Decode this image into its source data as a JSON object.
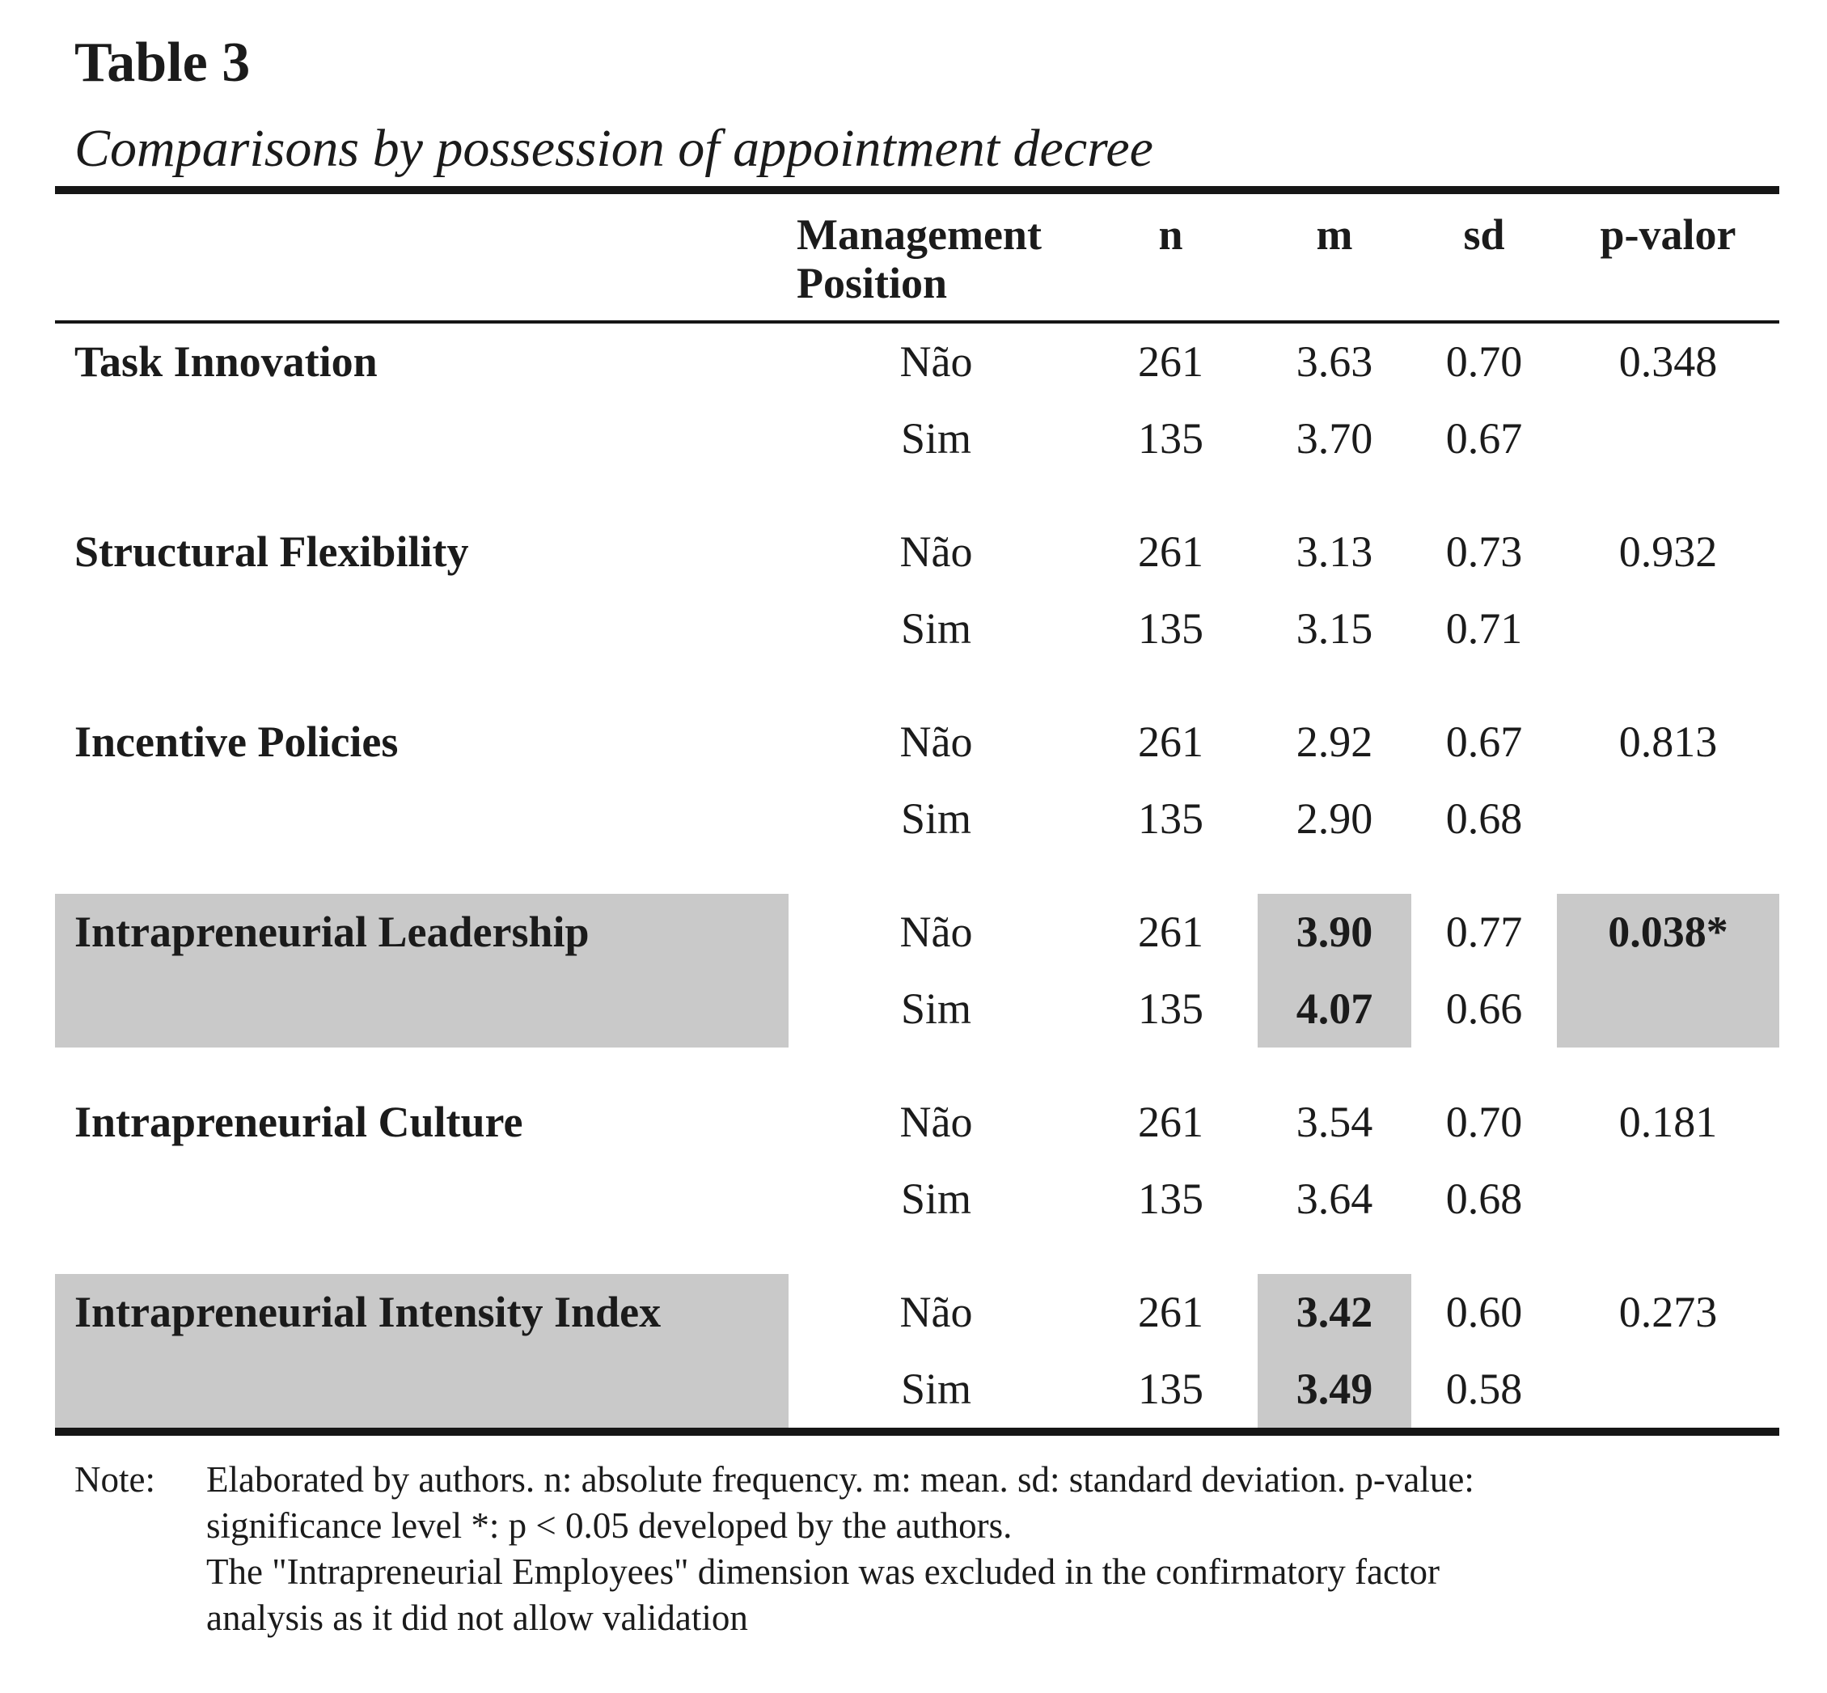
{
  "page": {
    "title": "Table 3",
    "subtitle": "Comparisons by possession of appointment decree"
  },
  "columns": {
    "group_header": "Management Position",
    "n": "n",
    "m": "m",
    "sd": "sd",
    "p": "p-valor"
  },
  "rows": [
    {
      "label": "Task Innovation",
      "highlighted": false,
      "p_highlighted": false,
      "p_value": "0.348",
      "nao": {
        "position": "Não",
        "n": "261",
        "m": "3.63",
        "sd": "0.70"
      },
      "sim": {
        "position": "Sim",
        "n": "135",
        "m": "3.70",
        "sd": "0.67"
      }
    },
    {
      "label": "Structural Flexibility",
      "highlighted": false,
      "p_highlighted": false,
      "p_value": "0.932",
      "nao": {
        "position": "Não",
        "n": "261",
        "m": "3.13",
        "sd": "0.73"
      },
      "sim": {
        "position": "Sim",
        "n": "135",
        "m": "3.15",
        "sd": "0.71"
      }
    },
    {
      "label": "Incentive Policies",
      "highlighted": false,
      "p_highlighted": false,
      "p_value": "0.813",
      "nao": {
        "position": "Não",
        "n": "261",
        "m": "2.92",
        "sd": "0.67"
      },
      "sim": {
        "position": "Sim",
        "n": "135",
        "m": "2.90",
        "sd": "0.68"
      }
    },
    {
      "label": "Intrapreneurial Leadership",
      "highlighted": true,
      "p_highlighted": true,
      "p_value": "0.038*",
      "nao": {
        "position": "Não",
        "n": "261",
        "m": "3.90",
        "sd": "0.77"
      },
      "sim": {
        "position": "Sim",
        "n": "135",
        "m": "4.07",
        "sd": "0.66"
      }
    },
    {
      "label": "Intrapreneurial Culture",
      "highlighted": false,
      "p_highlighted": false,
      "p_value": "0.181",
      "nao": {
        "position": "Não",
        "n": "261",
        "m": "3.54",
        "sd": "0.70"
      },
      "sim": {
        "position": "Sim",
        "n": "135",
        "m": "3.64",
        "sd": "0.68"
      }
    },
    {
      "label": "Intrapreneurial Intensity Index",
      "highlighted": true,
      "p_highlighted": false,
      "p_value": "0.273",
      "nao": {
        "position": "Não",
        "n": "261",
        "m": "3.42",
        "sd": "0.60"
      },
      "sim": {
        "position": "Sim",
        "n": "135",
        "m": "3.49",
        "sd": "0.58"
      }
    }
  ],
  "note": {
    "label": "Note:",
    "lines": [
      "Elaborated by authors. n: absolute frequency. m: mean. sd: standard deviation. p-value:",
      "significance level *: p < 0.05 developed by the authors.",
      "The \"Intrapreneurial Employees\" dimension was excluded in the confirmatory factor",
      "analysis as it did not allow validation"
    ]
  },
  "colors": {
    "highlight": "#c9c9c9",
    "text": "#1b1b1b"
  }
}
